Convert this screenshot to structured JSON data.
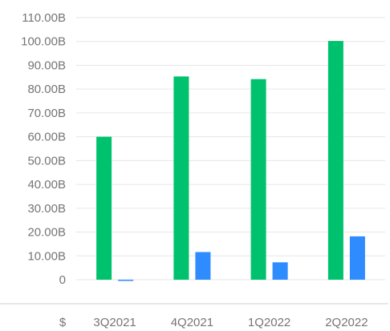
{
  "chart_data": {
    "type": "bar",
    "currency_label": "$",
    "categories": [
      "3Q2021",
      "4Q2021",
      "1Q2022",
      "2Q2022"
    ],
    "series": [
      {
        "color": "#00c26e",
        "values": [
          60.0,
          85.3,
          84.2,
          100.2
        ]
      },
      {
        "color": "#2f8cff",
        "values": [
          -0.5,
          11.6,
          7.3,
          18.2
        ]
      }
    ],
    "y_ticks": [
      "0",
      "10.00B",
      "20.00B",
      "30.00B",
      "40.00B",
      "50.00B",
      "60.00B",
      "70.00B",
      "80.00B",
      "90.00B",
      "100.00B",
      "110.00B"
    ],
    "y_tick_values": [
      0,
      10,
      20,
      30,
      40,
      50,
      60,
      70,
      80,
      90,
      100,
      110
    ],
    "ylim": [
      0,
      110
    ],
    "grid": true,
    "unit": "B"
  }
}
